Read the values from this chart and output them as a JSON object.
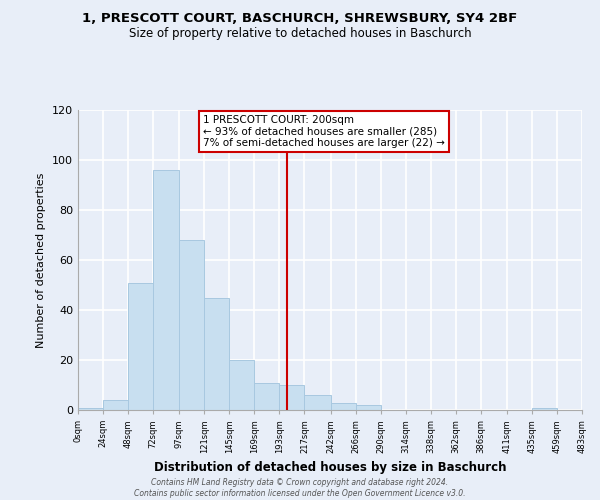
{
  "title": "1, PRESCOTT COURT, BASCHURCH, SHREWSBURY, SY4 2BF",
  "subtitle": "Size of property relative to detached houses in Baschurch",
  "xlabel": "Distribution of detached houses by size in Baschurch",
  "ylabel": "Number of detached properties",
  "bin_edges": [
    0,
    24,
    48,
    72,
    97,
    121,
    145,
    169,
    193,
    217,
    242,
    266,
    290,
    314,
    338,
    362,
    386,
    411,
    435,
    459,
    483
  ],
  "bar_heights": [
    1,
    4,
    51,
    96,
    68,
    45,
    20,
    11,
    10,
    6,
    3,
    2,
    0,
    0,
    0,
    0,
    0,
    0,
    1,
    0
  ],
  "bar_color": "#c8dff0",
  "bar_edge_color": "#a8c8e0",
  "property_line_x": 200,
  "property_line_color": "#cc0000",
  "annotation_line1": "1 PRESCOTT COURT: 200sqm",
  "annotation_line2": "← 93% of detached houses are smaller (285)",
  "annotation_line3": "7% of semi-detached houses are larger (22) →",
  "annotation_box_color": "#ffffff",
  "annotation_border_color": "#cc0000",
  "tick_labels": [
    "0sqm",
    "24sqm",
    "48sqm",
    "72sqm",
    "97sqm",
    "121sqm",
    "145sqm",
    "169sqm",
    "193sqm",
    "217sqm",
    "242sqm",
    "266sqm",
    "290sqm",
    "314sqm",
    "338sqm",
    "362sqm",
    "386sqm",
    "411sqm",
    "435sqm",
    "459sqm",
    "483sqm"
  ],
  "ylim": [
    0,
    120
  ],
  "yticks": [
    0,
    20,
    40,
    60,
    80,
    100,
    120
  ],
  "footer_line1": "Contains HM Land Registry data © Crown copyright and database right 2024.",
  "footer_line2": "Contains public sector information licensed under the Open Government Licence v3.0.",
  "background_color": "#e8eef8",
  "grid_color": "#ffffff",
  "plot_bg_color": "#e8eef8"
}
